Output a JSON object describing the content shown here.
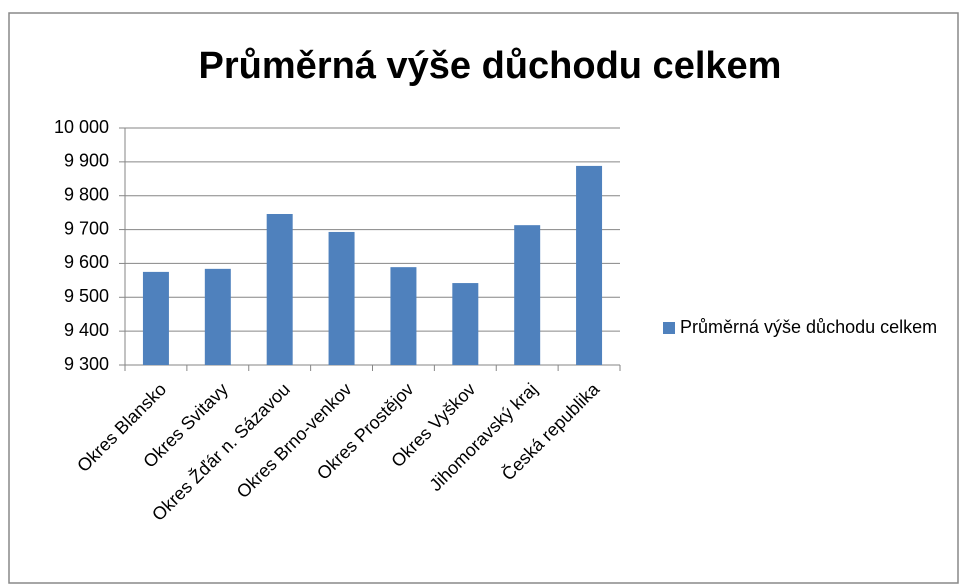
{
  "chart_data": {
    "type": "bar",
    "title": "Průměrná výše důchodu celkem",
    "categories": [
      "Okres Blansko",
      "Okres Svitavy",
      "Okres Žďár n. Sázavou",
      "Okres Brno-venkov",
      "Okres Prostějov",
      "Okres Vyškov",
      "Jihomoravský kraj",
      "Česká republika"
    ],
    "series": [
      {
        "name": "Průměrná výše důchodu celkem",
        "color": "#4f81bd",
        "values": [
          9575,
          9584,
          9746,
          9693,
          9589,
          9542,
          9713,
          9888
        ]
      }
    ],
    "ylim": [
      9300,
      10000
    ],
    "yticks": [
      {
        "value": 9300,
        "label": "9 300"
      },
      {
        "value": 9400,
        "label": "9 400"
      },
      {
        "value": 9500,
        "label": "9 500"
      },
      {
        "value": 9600,
        "label": "9 600"
      },
      {
        "value": 9700,
        "label": "9 700"
      },
      {
        "value": 9800,
        "label": "9 800"
      },
      {
        "value": 9900,
        "label": "9 900"
      },
      {
        "value": 10000,
        "label": "10 000"
      }
    ],
    "grid": true,
    "legend": "right"
  }
}
